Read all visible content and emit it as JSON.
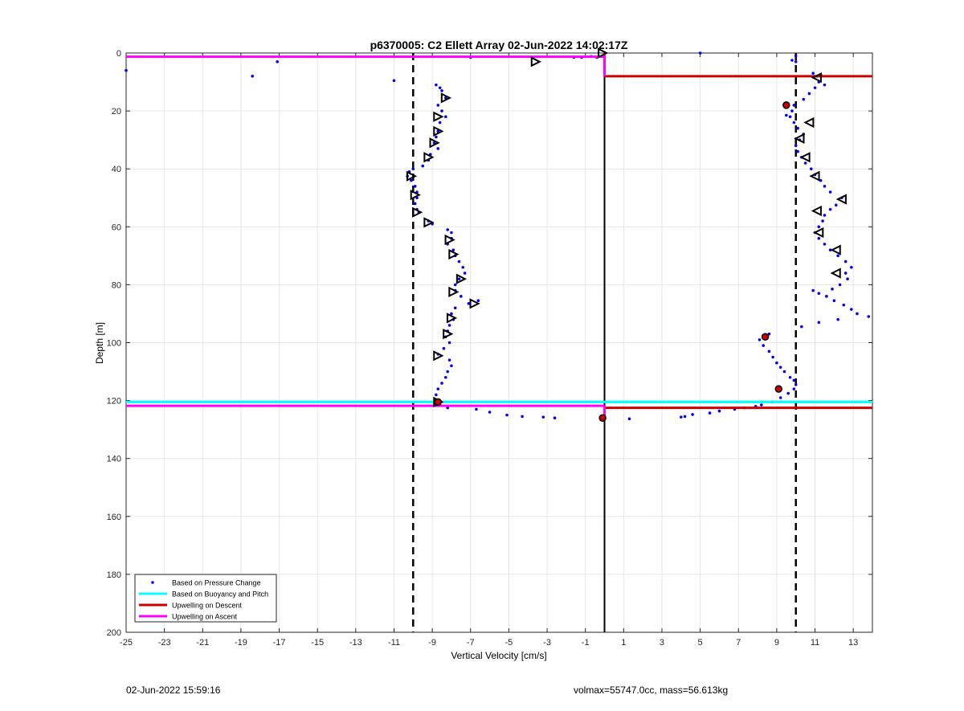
{
  "chart_data": {
    "type": "scatter",
    "title": "p6370005: C2 Ellett Array 02-Jun-2022 14:02:17Z",
    "xlabel": "Vertical Velocity [cm/s]",
    "ylabel": "Depth [m]",
    "xlim": [
      -25,
      14
    ],
    "ylim": [
      0,
      200
    ],
    "y_reversed": true,
    "grid": true,
    "xticks": [
      -25,
      -23,
      -21,
      -19,
      -17,
      -15,
      -13,
      -11,
      -9,
      -7,
      -5,
      -3,
      -1,
      1,
      3,
      5,
      7,
      9,
      11,
      13
    ],
    "yticks": [
      0,
      20,
      40,
      60,
      80,
      100,
      120,
      140,
      160,
      180,
      200
    ],
    "legend_position": "bottom-left",
    "series": [
      {
        "name": "Based on Pressure Change",
        "kind": "dots",
        "color": "#0000ff",
        "points": [
          [
            -25,
            6
          ],
          [
            -18.4,
            8
          ],
          [
            -17.1,
            3
          ],
          [
            -11,
            9.5
          ],
          [
            -7,
            1.5
          ],
          [
            -1.6,
            1.5
          ],
          [
            -1.2,
            1.5
          ],
          [
            -0.7,
            1.2
          ],
          [
            -0.4,
            1.5
          ],
          [
            5,
            0
          ],
          [
            9.8,
            2.5
          ],
          [
            10,
            1
          ],
          [
            10,
            3
          ],
          [
            -8.8,
            11
          ],
          [
            -8.6,
            12
          ],
          [
            -8.5,
            13
          ],
          [
            -8.3,
            15.5
          ],
          [
            -8.7,
            18
          ],
          [
            -8.5,
            20
          ],
          [
            -8.3,
            22
          ],
          [
            -8.6,
            24
          ],
          [
            -8.7,
            27
          ],
          [
            -8.8,
            29
          ],
          [
            -8.9,
            31
          ],
          [
            -8.7,
            33
          ],
          [
            -9.1,
            35
          ],
          [
            -9.2,
            37
          ],
          [
            -9.5,
            39
          ],
          [
            -10,
            40
          ],
          [
            -10.2,
            41
          ],
          [
            -10.3,
            42.5
          ],
          [
            -10.1,
            44
          ],
          [
            -9.9,
            46
          ],
          [
            -9.8,
            48
          ],
          [
            -9.8,
            50
          ],
          [
            -9.9,
            52
          ],
          [
            -9.8,
            54
          ],
          [
            -9.7,
            55
          ],
          [
            -9.2,
            58
          ],
          [
            -9,
            59
          ],
          [
            -8.2,
            61
          ],
          [
            -8,
            62
          ],
          [
            -8,
            64
          ],
          [
            -8.2,
            66
          ],
          [
            -7.9,
            68
          ],
          [
            -7.8,
            70
          ],
          [
            -7.6,
            72
          ],
          [
            -7.4,
            74
          ],
          [
            -7.3,
            76
          ],
          [
            -7.6,
            78
          ],
          [
            -7.8,
            80
          ],
          [
            -7.8,
            82
          ],
          [
            -7.5,
            84
          ],
          [
            -6.6,
            85.5
          ],
          [
            -7.1,
            86.5
          ],
          [
            -7.8,
            88
          ],
          [
            -8,
            90
          ],
          [
            -7.9,
            92
          ],
          [
            -8.1,
            94
          ],
          [
            -8.2,
            96
          ],
          [
            -8.3,
            98
          ],
          [
            -8.1,
            100
          ],
          [
            -8.4,
            102
          ],
          [
            -8.7,
            104
          ],
          [
            -8.1,
            106
          ],
          [
            -8,
            108
          ],
          [
            -8.2,
            110
          ],
          [
            -8.3,
            112
          ],
          [
            -8.5,
            114
          ],
          [
            -8.7,
            116
          ],
          [
            -8.8,
            118
          ],
          [
            -8.7,
            120
          ],
          [
            -8.6,
            121.5
          ],
          [
            -8.2,
            122.5
          ],
          [
            -6.7,
            123
          ],
          [
            -6,
            124
          ],
          [
            -5.1,
            125
          ],
          [
            -4.3,
            125.5
          ],
          [
            -3.2,
            125.7
          ],
          [
            -2.6,
            126
          ],
          [
            1.3,
            126.3
          ],
          [
            4,
            125.7
          ],
          [
            4.2,
            125.5
          ],
          [
            4.6,
            124.8
          ],
          [
            5.5,
            124.3
          ],
          [
            6,
            123.6
          ],
          [
            6.8,
            123
          ],
          [
            7.3,
            122.5
          ],
          [
            7.9,
            122
          ],
          [
            8.2,
            121.5
          ],
          [
            8.8,
            120.5
          ],
          [
            9.2,
            119
          ],
          [
            9.6,
            117.5
          ],
          [
            9.9,
            116
          ],
          [
            10,
            114.5
          ],
          [
            9.9,
            113
          ],
          [
            9.7,
            112
          ],
          [
            9.4,
            110
          ],
          [
            9.2,
            108.5
          ],
          [
            9,
            107
          ],
          [
            8.8,
            105
          ],
          [
            8.6,
            103
          ],
          [
            8.3,
            101
          ],
          [
            8.1,
            99
          ],
          [
            8.3,
            97.5
          ],
          [
            8.6,
            97
          ],
          [
            10.3,
            94.5
          ],
          [
            11.2,
            93
          ],
          [
            12.2,
            92
          ],
          [
            13.8,
            91
          ],
          [
            13.2,
            90
          ],
          [
            12.9,
            88.5
          ],
          [
            12.5,
            87
          ],
          [
            12,
            85.5
          ],
          [
            11.6,
            84
          ],
          [
            11.2,
            83
          ],
          [
            10.9,
            82
          ],
          [
            11.9,
            81.5
          ],
          [
            12.3,
            80
          ],
          [
            12.7,
            78
          ],
          [
            12.6,
            76
          ],
          [
            12.9,
            74
          ],
          [
            12.6,
            72
          ],
          [
            12.2,
            70
          ],
          [
            11.8,
            68
          ],
          [
            11.5,
            66
          ],
          [
            11.2,
            64
          ],
          [
            11,
            62
          ],
          [
            11.2,
            60
          ],
          [
            11.4,
            58
          ],
          [
            11.5,
            56
          ],
          [
            11.8,
            54
          ],
          [
            12.1,
            52.5
          ],
          [
            12.4,
            50
          ],
          [
            11.8,
            48
          ],
          [
            11.5,
            46
          ],
          [
            11.3,
            44
          ],
          [
            11,
            42
          ],
          [
            10.8,
            40
          ],
          [
            10.5,
            38
          ],
          [
            10.3,
            36
          ],
          [
            10.1,
            34
          ],
          [
            10,
            32
          ],
          [
            10.2,
            30
          ],
          [
            10.4,
            28
          ],
          [
            10.1,
            26
          ],
          [
            9.9,
            24
          ],
          [
            9.7,
            22
          ],
          [
            9.5,
            21.5
          ],
          [
            9.8,
            20
          ],
          [
            9.9,
            18
          ],
          [
            10.4,
            16
          ],
          [
            10.7,
            14
          ],
          [
            11,
            12
          ],
          [
            11.2,
            10
          ],
          [
            11.1,
            8
          ],
          [
            10.9,
            7
          ],
          [
            11.3,
            7.5
          ],
          [
            11.5,
            11
          ]
        ]
      },
      {
        "name": "Based on Buoyancy and Pitch",
        "kind": "hline",
        "color": "#00ffff",
        "y": 120.5,
        "x": [
          -25,
          14
        ]
      },
      {
        "name": "Upwelling on Descent",
        "kind": "hline-set",
        "color": "#cc0000",
        "segments": [
          {
            "y": 8,
            "x": [
              0,
              14
            ]
          },
          {
            "y": 122.5,
            "x": [
              0,
              14
            ]
          }
        ]
      },
      {
        "name": "Upwelling on Ascent",
        "kind": "hline-set",
        "color": "#ff00ff",
        "segments": [
          {
            "y": 1.3,
            "x": [
              -25,
              0
            ]
          },
          {
            "y": 121.8,
            "x": [
              -25,
              0
            ]
          }
        ]
      }
    ],
    "reference_lines": [
      {
        "x": -10,
        "style": "dashed",
        "color": "#000000"
      },
      {
        "x": 10,
        "style": "dashed",
        "color": "#000000"
      },
      {
        "x": 0,
        "style": "solid",
        "color": "#000000"
      }
    ],
    "markers": {
      "left_triangles": [
        [
          -8.3,
          15.5
        ],
        [
          -8.7,
          22
        ],
        [
          -8.7,
          27
        ],
        [
          -8.9,
          31
        ],
        [
          -9.2,
          36
        ],
        [
          -10.1,
          42.5
        ],
        [
          -9.9,
          49
        ],
        [
          -9.8,
          55
        ],
        [
          -9.2,
          58.5
        ],
        [
          -8.1,
          64.5
        ],
        [
          -7.9,
          69.5
        ],
        [
          -7.5,
          78
        ],
        [
          -7.9,
          82.5
        ],
        [
          -6.8,
          86.5
        ],
        [
          -8,
          91.5
        ],
        [
          -8.2,
          97
        ],
        [
          -8.7,
          104.5
        ],
        [
          -8.7,
          120.5
        ],
        [
          -3.6,
          3
        ],
        [
          -0.1,
          0
        ]
      ],
      "right_triangles": [
        [
          11.1,
          8.5
        ],
        [
          10.7,
          24
        ],
        [
          10.2,
          29.5
        ],
        [
          10.5,
          36
        ],
        [
          11,
          42.5
        ],
        [
          12.4,
          50.5
        ],
        [
          11.1,
          54.5
        ],
        [
          11.2,
          62
        ],
        [
          12.1,
          68
        ],
        [
          12.1,
          76
        ]
      ],
      "red_markers": [
        [
          9.5,
          18
        ],
        [
          8.4,
          98
        ],
        [
          9.1,
          116
        ],
        [
          -8.7,
          120.5
        ],
        [
          -0.1,
          126
        ]
      ]
    }
  },
  "footer": {
    "timestamp": "02-Jun-2022 15:59:16",
    "info": "volmax=55747.0cc, mass=56.613kg"
  }
}
